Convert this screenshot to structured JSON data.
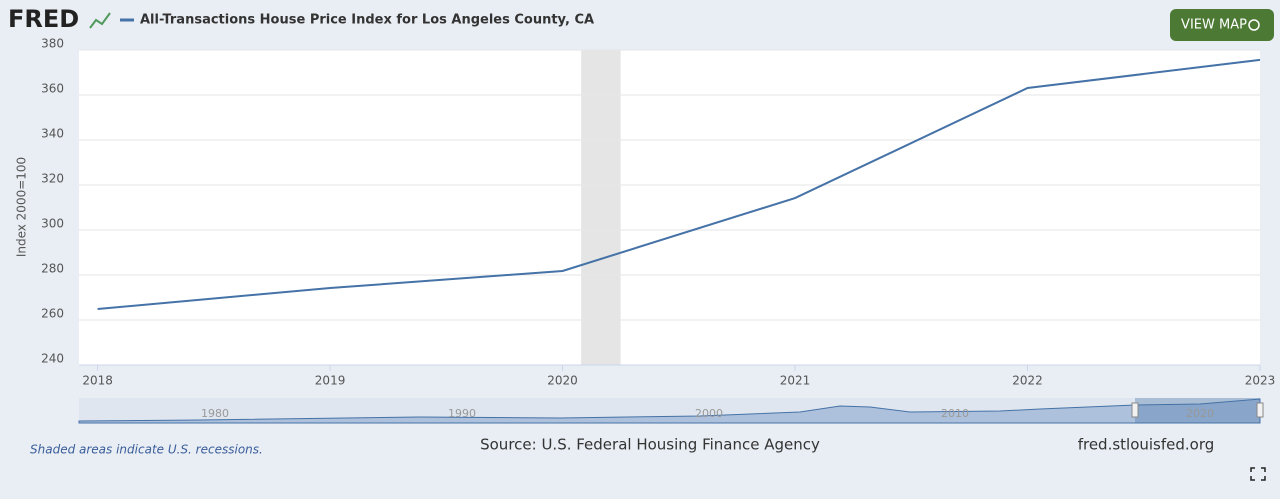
{
  "logo": "FRED",
  "button": "VIEW MAP",
  "note": "Shaded areas indicate U.S. recessions.",
  "source": "Source: U.S. Federal Housing Finance Agency",
  "site": "fred.stlouisfed.org",
  "navigator_labels": [
    "1980",
    "1990",
    "2000",
    "2010",
    "2020"
  ],
  "chart_data": {
    "type": "line",
    "title": "All-Transactions House Price Index for Los Angeles County, CA",
    "y_label": "Index 2000=100",
    "x": [
      2018,
      2019,
      2020,
      2021,
      2022,
      2023
    ],
    "series": [
      {
        "name": "All-Transactions House Price Index for Los Angeles County, CA",
        "color": "#4572a7",
        "values": [
          264.9,
          274.2,
          281.8,
          314.2,
          363.1,
          375.6
        ]
      }
    ],
    "xlim": [
      2017.92,
      2023
    ],
    "xticks": [
      2018,
      2019,
      2020,
      2021,
      2022,
      2023
    ],
    "ylim": [
      240,
      380
    ],
    "yticks": [
      240,
      260,
      280,
      300,
      320,
      340,
      360,
      380
    ],
    "recessions": [
      [
        2020.08,
        2020.25
      ]
    ],
    "grid": true
  }
}
